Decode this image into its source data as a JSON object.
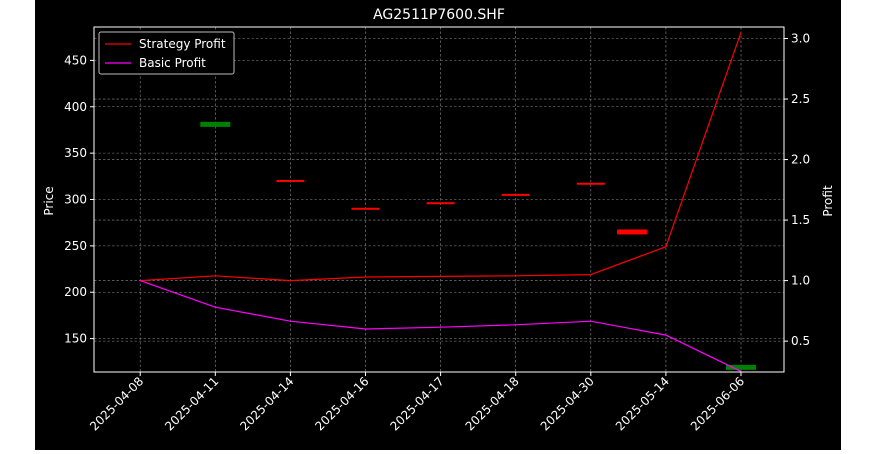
{
  "chart_data": {
    "type": "line",
    "title": "AG2511P7600.SHF",
    "x": [
      "2025-04-08",
      "2025-04-11",
      "2025-04-14",
      "2025-04-16",
      "2025-04-17",
      "2025-04-18",
      "2025-04-30",
      "2025-05-14",
      "2025-06-06"
    ],
    "ylabel_left": "Price",
    "ylabel_right": "Profit",
    "y_left_lim": [
      114,
      486
    ],
    "y_right_lim": [
      0.245,
      3.095
    ],
    "y_left_ticks": [
      150,
      200,
      250,
      300,
      350,
      400,
      450
    ],
    "y_right_ticks": [
      "0.5",
      "1.0",
      "1.5",
      "2.0",
      "2.5",
      "3.0"
    ],
    "grid": true,
    "legend_position": "top-left",
    "series": [
      {
        "name": "Strategy Profit",
        "axis": "right",
        "color": "#ff0000",
        "values": [
          1.0,
          1.04,
          1.0,
          1.03,
          1.035,
          1.04,
          1.05,
          1.28,
          3.05
        ]
      },
      {
        "name": "Basic Profit",
        "axis": "right",
        "color": "#ff00ff",
        "values": [
          1.0,
          0.78,
          0.665,
          0.6,
          0.615,
          0.635,
          0.665,
          0.55,
          0.25
        ]
      }
    ],
    "price_markers": [
      {
        "x": "2025-04-11",
        "price": 381,
        "color": "#008000"
      },
      {
        "x": "2025-04-14",
        "price": 320,
        "color": "#ff0000"
      },
      {
        "x": "2025-04-16",
        "price": 290,
        "color": "#ff0000"
      },
      {
        "x": "2025-04-17",
        "price": 296,
        "color": "#ff0000"
      },
      {
        "x": "2025-04-18",
        "price": 305,
        "color": "#ff0000"
      },
      {
        "x": "2025-04-30",
        "price": 317,
        "color": "#ff0000"
      },
      {
        "x": "2025-05-14",
        "price": 265,
        "color": "#ff0000"
      },
      {
        "x": "2025-06-06",
        "price": 119,
        "color": "#008000"
      }
    ]
  }
}
